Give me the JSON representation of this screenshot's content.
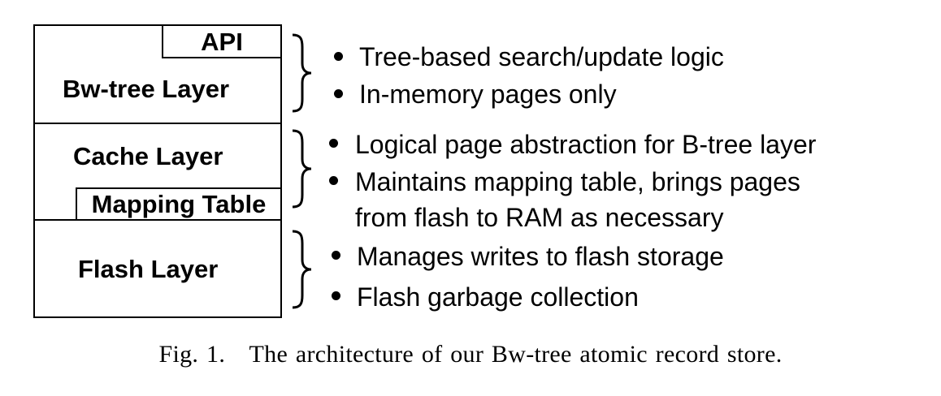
{
  "layers": [
    {
      "name": "Bw-tree Layer",
      "box": "API"
    },
    {
      "name": "Cache Layer",
      "box": "Mapping Table"
    },
    {
      "name": "Flash Layer"
    }
  ],
  "bullets": {
    "bwtree": [
      "Tree-based search/update logic",
      "In-memory pages only"
    ],
    "cache": [
      "Logical page abstraction for B-tree layer",
      "Maintains mapping table, brings pages",
      "from flash to RAM as necessary"
    ],
    "flash": [
      "Manages writes to flash storage",
      "Flash garbage collection"
    ]
  },
  "caption": {
    "label": "Fig. 1.",
    "text": "The architecture of our Bw-tree atomic record store."
  }
}
